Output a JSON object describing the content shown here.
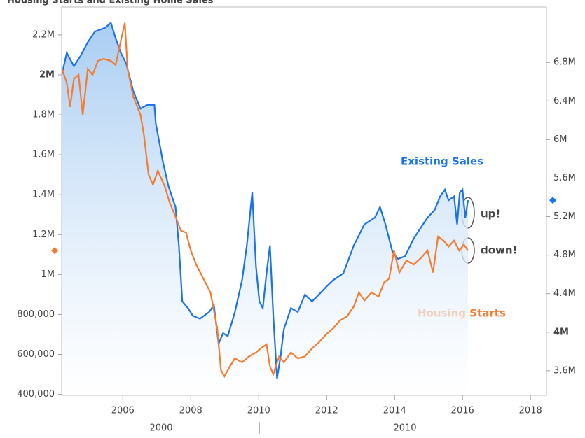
{
  "chart_data": {
    "type": "line",
    "title": "Housing Starts and Existing Home Sales",
    "xlim": [
      2004.2,
      2018.47
    ],
    "xticks": [
      2006,
      2008,
      2010,
      2012,
      2014,
      2016,
      2018
    ],
    "lower_labels": [
      "2000",
      "2010"
    ],
    "ylim": [
      395000,
      2340000
    ],
    "yticks": [
      {
        "value": 400000,
        "label": "400,000"
      },
      {
        "value": 600000,
        "label": "600,000"
      },
      {
        "value": 800000,
        "label": "800,000"
      },
      {
        "value": 1000000,
        "label": "1M"
      },
      {
        "value": 1200000,
        "label": "1.2M"
      },
      {
        "value": 1400000,
        "label": "1.4M"
      },
      {
        "value": 1600000,
        "label": "1.6M"
      },
      {
        "value": 1800000,
        "label": "1.8M"
      },
      {
        "value": 2000000,
        "label": "2M"
      },
      {
        "value": 2200000,
        "label": "2.2M"
      }
    ],
    "y2lim": [
      3345000,
      7375000
    ],
    "y2ticks": [
      {
        "value": 3600000,
        "label": "3.6M"
      },
      {
        "value": 4000000,
        "label": "4M"
      },
      {
        "value": 4400000,
        "label": "4.4M"
      },
      {
        "value": 4800000,
        "label": "4.8M"
      },
      {
        "value": 5200000,
        "label": "5.2M"
      },
      {
        "value": 5600000,
        "label": "5.6M"
      },
      {
        "value": 6000000,
        "label": "6M"
      },
      {
        "value": 6400000,
        "label": "6.4M"
      },
      {
        "value": 6800000,
        "label": "6.8M"
      }
    ],
    "annotations": [
      "Existing Sales",
      "Housing Starts",
      "up!",
      "down!"
    ],
    "series": [
      {
        "name": "Existing Sales",
        "color": "#1a73e8",
        "axis": "y2",
        "area": true,
        "x": [
          2004.21,
          2004.35,
          2004.56,
          2004.76,
          2004.97,
          2005.18,
          2005.48,
          2005.65,
          2005.79,
          2005.94,
          2006.1,
          2006.31,
          2006.52,
          2006.72,
          2006.93,
          2006.97,
          2007.18,
          2007.34,
          2007.55,
          2007.65,
          2007.75,
          2007.92,
          2008.06,
          2008.27,
          2008.54,
          2008.68,
          2008.82,
          2008.95,
          2009.09,
          2009.3,
          2009.51,
          2009.65,
          2009.81,
          2009.92,
          2010.02,
          2010.12,
          2010.23,
          2010.33,
          2010.43,
          2010.54,
          2010.64,
          2010.74,
          2010.95,
          2011.15,
          2011.36,
          2011.57,
          2011.77,
          2011.98,
          2012.19,
          2012.49,
          2012.8,
          2013.11,
          2013.42,
          2013.57,
          2013.73,
          2013.94,
          2014.1,
          2014.31,
          2014.56,
          2014.76,
          2014.97,
          2015.18,
          2015.34,
          2015.48,
          2015.59,
          2015.75,
          2015.84,
          2015.92,
          2016.0,
          2016.08,
          2016.16
        ],
        "values": [
          6680000,
          6900000,
          6760000,
          6870000,
          7010000,
          7120000,
          7160000,
          7210000,
          7050000,
          6900000,
          6790000,
          6500000,
          6320000,
          6360000,
          6360000,
          6170000,
          5770000,
          5520000,
          5300000,
          4900000,
          4320000,
          4250000,
          4170000,
          4140000,
          4210000,
          4280000,
          3880000,
          3990000,
          3960000,
          4210000,
          4540000,
          4900000,
          5450000,
          4680000,
          4320000,
          4250000,
          4610000,
          4900000,
          4170000,
          3520000,
          3740000,
          4030000,
          4250000,
          4210000,
          4390000,
          4320000,
          4390000,
          4470000,
          4540000,
          4610000,
          4900000,
          5120000,
          5190000,
          5300000,
          5120000,
          4830000,
          4760000,
          4790000,
          4970000,
          5080000,
          5190000,
          5270000,
          5410000,
          5480000,
          5370000,
          5410000,
          5120000,
          5450000,
          5480000,
          5190000,
          5370000
        ]
      },
      {
        "name": "Housing Starts",
        "color": "#f47c30",
        "axis": "y",
        "x": [
          2004.21,
          2004.35,
          2004.45,
          2004.56,
          2004.7,
          2004.82,
          2004.97,
          2005.11,
          2005.27,
          2005.43,
          2005.65,
          2005.79,
          2005.94,
          2006.06,
          2006.14,
          2006.31,
          2006.52,
          2006.62,
          2006.76,
          2006.89,
          2007.03,
          2007.24,
          2007.38,
          2007.55,
          2007.71,
          2007.86,
          2008.0,
          2008.16,
          2008.37,
          2008.58,
          2008.78,
          2008.89,
          2008.99,
          2009.15,
          2009.3,
          2009.51,
          2009.71,
          2009.92,
          2010.06,
          2010.23,
          2010.33,
          2010.43,
          2010.6,
          2010.74,
          2010.95,
          2011.15,
          2011.36,
          2011.57,
          2011.77,
          2011.98,
          2012.19,
          2012.39,
          2012.6,
          2012.8,
          2012.95,
          2013.11,
          2013.32,
          2013.53,
          2013.69,
          2013.84,
          2013.98,
          2014.14,
          2014.35,
          2014.56,
          2014.76,
          2014.97,
          2015.13,
          2015.28,
          2015.44,
          2015.59,
          2015.75,
          2015.9,
          2016.04,
          2016.16
        ],
        "values": [
          2030000,
          1960000,
          1840000,
          1980000,
          2000000,
          1800000,
          2030000,
          2000000,
          2070000,
          2080000,
          2070000,
          2050000,
          2170000,
          2260000,
          2030000,
          1890000,
          1800000,
          1700000,
          1500000,
          1450000,
          1520000,
          1440000,
          1360000,
          1290000,
          1220000,
          1210000,
          1120000,
          1050000,
          980000,
          910000,
          730000,
          520000,
          490000,
          540000,
          580000,
          560000,
          590000,
          610000,
          630000,
          650000,
          540000,
          500000,
          590000,
          560000,
          610000,
          580000,
          590000,
          630000,
          660000,
          700000,
          730000,
          770000,
          790000,
          840000,
          910000,
          870000,
          910000,
          890000,
          960000,
          980000,
          1120000,
          1010000,
          1070000,
          1050000,
          1080000,
          1120000,
          1010000,
          1190000,
          1170000,
          1140000,
          1170000,
          1120000,
          1150000,
          1120000
        ]
      }
    ]
  }
}
